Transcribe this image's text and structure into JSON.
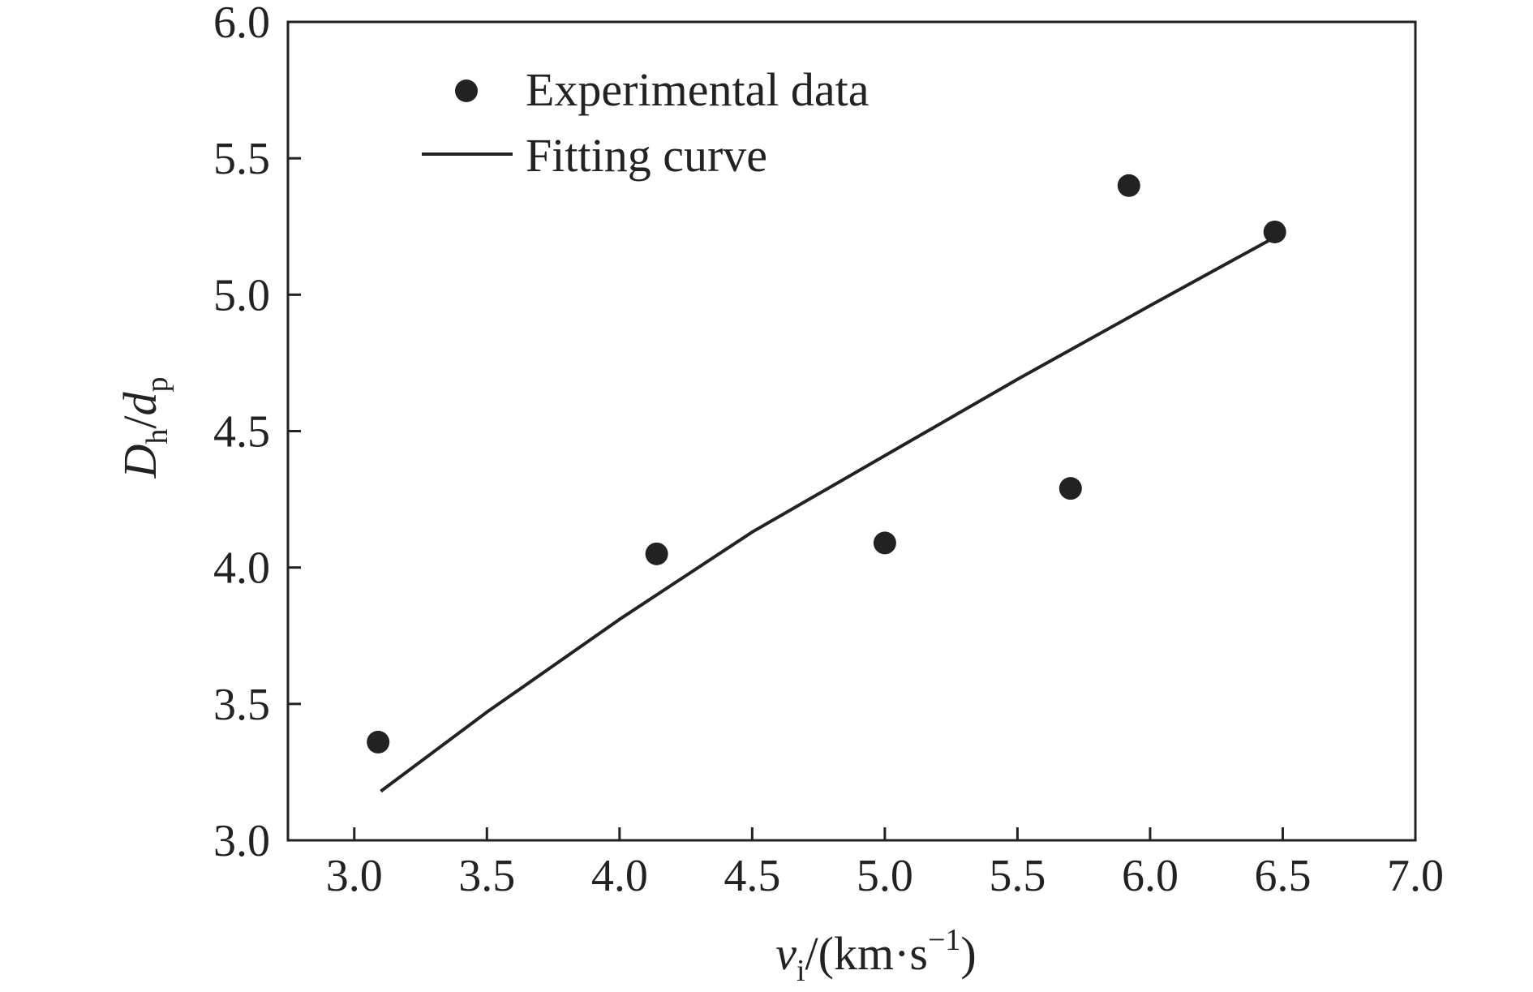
{
  "chart_data": {
    "type": "scatter",
    "xlabel": {
      "main": "v",
      "sub": "i",
      "rest": "/(km·s",
      "sup": "−1",
      "close": ")"
    },
    "ylabel": {
      "main1": "D",
      "sub1": "h",
      "slash": "/",
      "main2": "d",
      "sub2": "p"
    },
    "xlim": [
      2.75,
      7.0
    ],
    "ylim": [
      3.0,
      6.0
    ],
    "xticks": [
      3.0,
      3.5,
      4.0,
      4.5,
      5.0,
      5.5,
      6.0,
      6.5,
      7.0
    ],
    "yticks": [
      3.0,
      3.5,
      4.0,
      4.5,
      5.0,
      5.5,
      6.0
    ],
    "xtick_labels": [
      "3.0",
      "3.5",
      "4.0",
      "4.5",
      "5.0",
      "5.5",
      "6.0",
      "6.5",
      "7.0"
    ],
    "ytick_labels": [
      "3.0",
      "3.5",
      "4.0",
      "4.5",
      "5.0",
      "5.5",
      "6.0"
    ],
    "grid": false,
    "legend_position": "top-left",
    "colors": {
      "marker": "#222222",
      "line": "#222222",
      "axes": "#222222"
    },
    "series": [
      {
        "name": "Experimental data",
        "kind": "scatter",
        "points": [
          {
            "x": 3.09,
            "y": 3.36
          },
          {
            "x": 4.14,
            "y": 4.05
          },
          {
            "x": 5.0,
            "y": 4.09
          },
          {
            "x": 5.7,
            "y": 4.29
          },
          {
            "x": 5.92,
            "y": 5.4
          },
          {
            "x": 6.47,
            "y": 5.23
          }
        ]
      },
      {
        "name": "Fitting curve",
        "kind": "line",
        "points": [
          {
            "x": 3.1,
            "y": 3.18
          },
          {
            "x": 3.5,
            "y": 3.47
          },
          {
            "x": 4.0,
            "y": 3.81
          },
          {
            "x": 4.5,
            "y": 4.13
          },
          {
            "x": 5.0,
            "y": 4.41
          },
          {
            "x": 5.5,
            "y": 4.69
          },
          {
            "x": 6.0,
            "y": 4.96
          },
          {
            "x": 6.45,
            "y": 5.2
          }
        ]
      }
    ]
  }
}
